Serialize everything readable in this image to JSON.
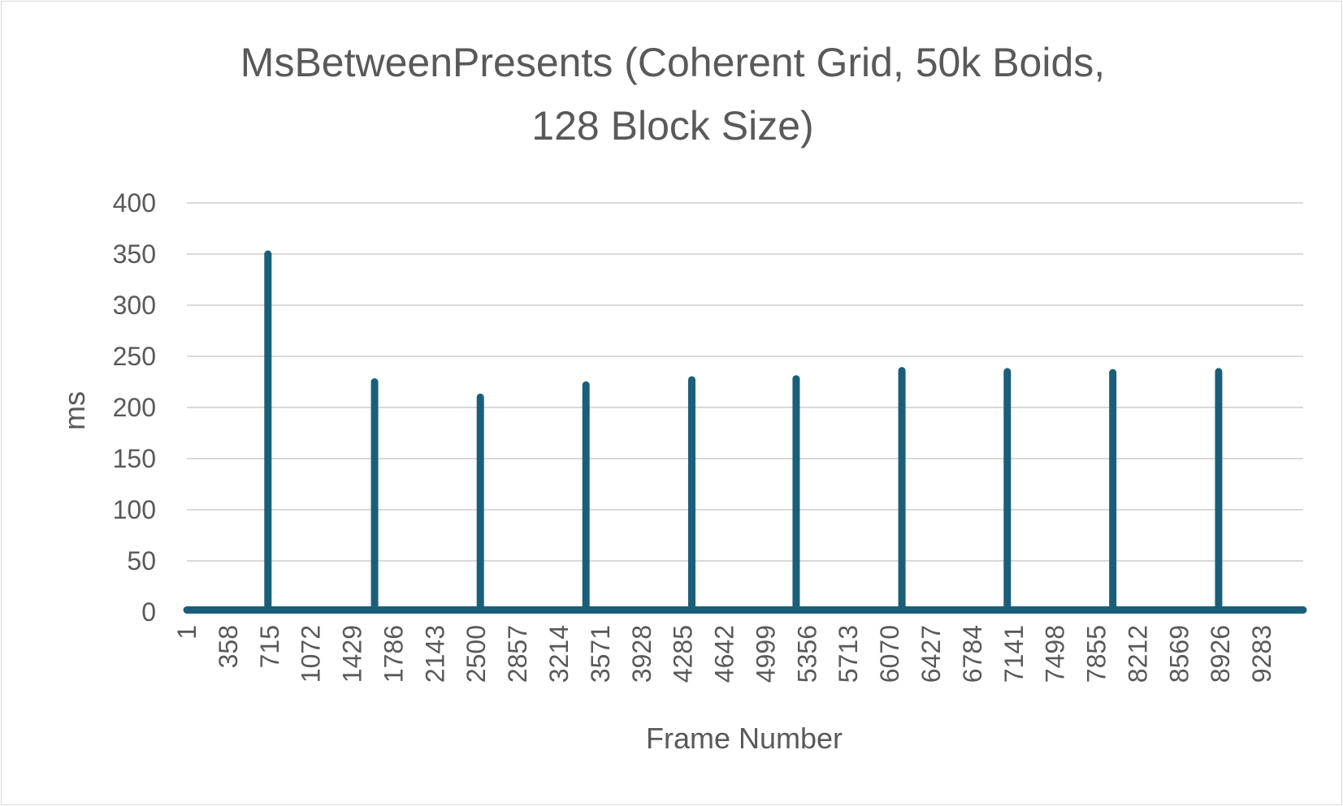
{
  "chart_data": {
    "type": "line",
    "title_lines": [
      "MsBetweenPresents (Coherent Grid, 50k Boids,",
      "128 Block Size)"
    ],
    "xlabel": "Frame Number",
    "ylabel": "ms",
    "ylim": [
      0,
      400
    ],
    "y_ticks": [
      0,
      50,
      100,
      150,
      200,
      250,
      300,
      350,
      400
    ],
    "x_tick_labels": [
      "1",
      "358",
      "715",
      "1072",
      "1429",
      "1786",
      "2143",
      "2500",
      "2857",
      "3214",
      "3571",
      "3928",
      "4285",
      "4642",
      "4999",
      "5356",
      "5713",
      "6070",
      "6427",
      "6784",
      "7141",
      "7498",
      "7855",
      "8212",
      "8569",
      "8926",
      "9283"
    ],
    "x_range": [
      1,
      9640
    ],
    "grid": true,
    "legend": "none",
    "series": [
      {
        "color": "#1a5f7a",
        "baseline_ms": 2,
        "spikes": [
          {
            "frame": 701,
            "ms": 350
          },
          {
            "frame": 1622,
            "ms": 225
          },
          {
            "frame": 2535,
            "ms": 210
          },
          {
            "frame": 3447,
            "ms": 222
          },
          {
            "frame": 4361,
            "ms": 227
          },
          {
            "frame": 5262,
            "ms": 228
          },
          {
            "frame": 6175,
            "ms": 236
          },
          {
            "frame": 7085,
            "ms": 235
          },
          {
            "frame": 7996,
            "ms": 234
          },
          {
            "frame": 8910,
            "ms": 235
          }
        ]
      }
    ]
  }
}
